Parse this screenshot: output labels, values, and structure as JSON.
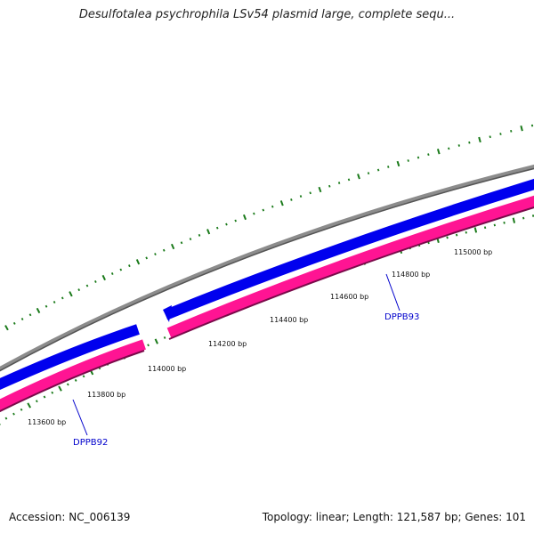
{
  "title": "Desulfotalea psychrophila LSv54 plasmid large, complete sequ...",
  "footer": {
    "accession": "Accession: NC_006139",
    "summary": "Topology: linear; Length: 121,587 bp; Genes: 101"
  },
  "colors": {
    "backbone": "#8c8c8c",
    "forward_gene": "#0000ee",
    "reverse_gene": "#ff1493",
    "ticks": "#1a7a1a",
    "gene_label": "#0000cc",
    "tick_label": "#111111"
  },
  "tick_labels": [
    "113600 bp",
    "113800 bp",
    "114000 bp",
    "114200 bp",
    "114400 bp",
    "114600 bp",
    "114800 bp",
    "115000 bp"
  ],
  "genes": [
    {
      "label": "DPPB92",
      "strand": "reverse"
    },
    {
      "label": "DPPB93",
      "strand": "reverse"
    }
  ]
}
